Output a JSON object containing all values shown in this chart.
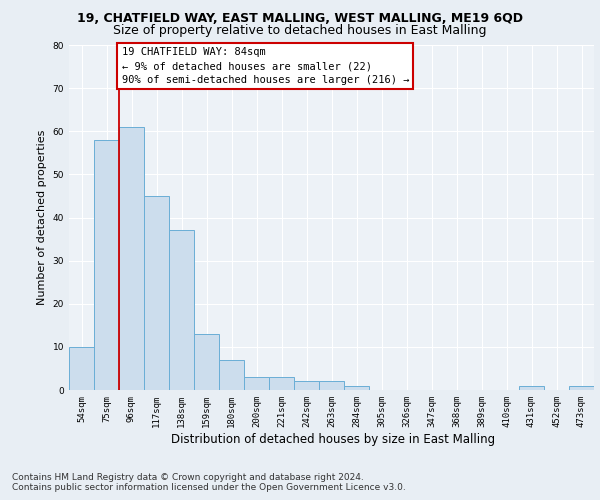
{
  "title_line1": "19, CHATFIELD WAY, EAST MALLING, WEST MALLING, ME19 6QD",
  "title_line2": "Size of property relative to detached houses in East Malling",
  "xlabel": "Distribution of detached houses by size in East Malling",
  "ylabel": "Number of detached properties",
  "categories": [
    "54sqm",
    "75sqm",
    "96sqm",
    "117sqm",
    "138sqm",
    "159sqm",
    "180sqm",
    "200sqm",
    "221sqm",
    "242sqm",
    "263sqm",
    "284sqm",
    "305sqm",
    "326sqm",
    "347sqm",
    "368sqm",
    "389sqm",
    "410sqm",
    "431sqm",
    "452sqm",
    "473sqm"
  ],
  "values": [
    10,
    58,
    61,
    45,
    37,
    13,
    7,
    3,
    3,
    2,
    2,
    1,
    0,
    0,
    0,
    0,
    0,
    0,
    1,
    0,
    1
  ],
  "bar_color": "#ccdded",
  "bar_edge_color": "#6aaed6",
  "annotation_line1": "19 CHATFIELD WAY: 84sqm",
  "annotation_line2": "← 9% of detached houses are smaller (22)",
  "annotation_line3": "90% of semi-detached houses are larger (216) →",
  "annotation_box_facecolor": "white",
  "annotation_box_edgecolor": "#cc0000",
  "vline_color": "#cc0000",
  "ylim": [
    0,
    80
  ],
  "yticks": [
    0,
    10,
    20,
    30,
    40,
    50,
    60,
    70,
    80
  ],
  "footer1": "Contains HM Land Registry data © Crown copyright and database right 2024.",
  "footer2": "Contains public sector information licensed under the Open Government Licence v3.0.",
  "bg_color": "#e8eef4",
  "plot_bg_color": "#edf2f7",
  "grid_color": "#ffffff",
  "title1_fontsize": 9,
  "title2_fontsize": 9,
  "ylabel_fontsize": 8,
  "xlabel_fontsize": 8.5,
  "tick_fontsize": 6.5,
  "ann_fontsize": 7.5,
  "footer_fontsize": 6.5
}
